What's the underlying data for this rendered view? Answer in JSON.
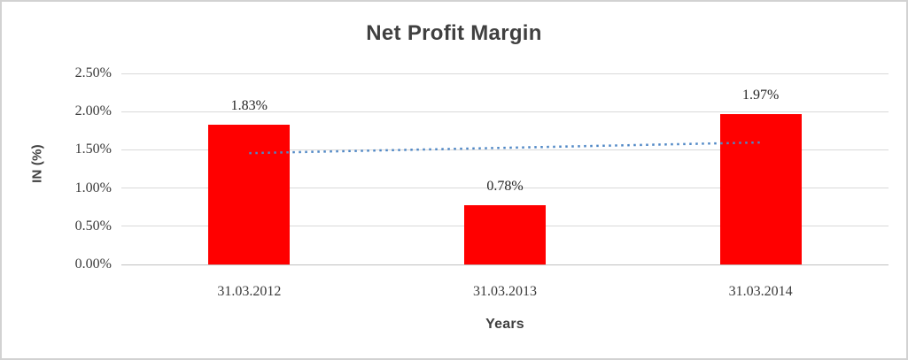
{
  "chart_data": {
    "type": "bar",
    "title": "Net Profit Margin",
    "xlabel": "Years",
    "ylabel": "IN (%)",
    "categories": [
      "31.03.2012",
      "31.03.2013",
      "31.03.2014"
    ],
    "series": [
      {
        "name": "Net Profit Margin",
        "values": [
          1.83,
          0.78,
          1.97
        ]
      }
    ],
    "data_labels": [
      "1.83%",
      "0.78%",
      "1.97%"
    ],
    "ylim": [
      0,
      2.5
    ],
    "ytick_step": 0.5,
    "ytick_labels": [
      "0.00%",
      "0.50%",
      "1.00%",
      "1.50%",
      "2.00%",
      "2.50%"
    ],
    "grid": true,
    "legend": false,
    "bar_color": "#ff0000",
    "gridline_color": "#d9d9d9",
    "title_color": "#404040",
    "trendline": {
      "type": "linear-dotted",
      "color": "#4f87c5",
      "start_value": 1.4567,
      "end_value": 1.5967
    }
  }
}
